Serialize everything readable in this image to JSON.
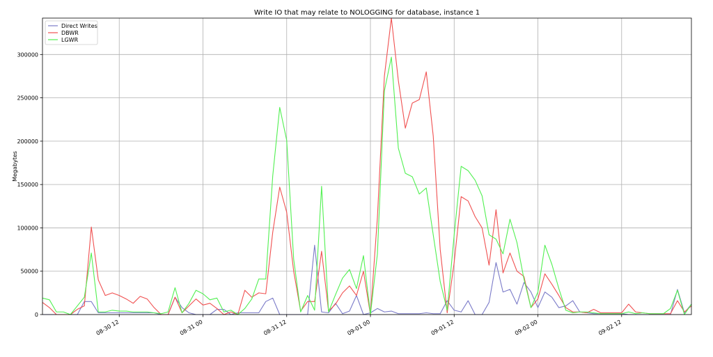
{
  "chart_data": {
    "type": "line",
    "title": "Write IO that may relate to NOLOGGING for               database, instance 1",
    "xlabel": "",
    "ylabel": "Megabytes",
    "ylim": [
      0,
      342000
    ],
    "yticks": [
      0,
      50000,
      100000,
      150000,
      200000,
      250000,
      300000
    ],
    "xticks": [
      {
        "t": 11,
        "label": "08-30 12"
      },
      {
        "t": 23,
        "label": "08-31 00"
      },
      {
        "t": 35,
        "label": "08-31 12"
      },
      {
        "t": 47,
        "label": "09-01 00"
      },
      {
        "t": 59,
        "label": "09-01 12"
      },
      {
        "t": 71,
        "label": "09-02 00"
      },
      {
        "t": 83,
        "label": "09-02 12"
      }
    ],
    "x_step_hours": 1,
    "x_start_label": "08-30 01",
    "grid": true,
    "legend": "top-left",
    "series": [
      {
        "name": "Direct Writes",
        "color": "#7a7ac8",
        "values": [
          0,
          0,
          0,
          0,
          0,
          0,
          15000,
          15000,
          2000,
          2000,
          2000,
          2000,
          2000,
          2000,
          2000,
          2000,
          2000,
          0,
          0,
          20000,
          8000,
          2000,
          0,
          0,
          0,
          6000,
          6000,
          0,
          2000,
          2000,
          2000,
          2000,
          15000,
          19000,
          0,
          0,
          0,
          0,
          0,
          80000,
          3000,
          2000,
          13000,
          1000,
          4000,
          22000,
          0,
          2000,
          7000,
          3000,
          4000,
          1000,
          1000,
          1000,
          1000,
          2000,
          1000,
          1000,
          16000,
          5000,
          3000,
          16000,
          0,
          0,
          14000,
          60000,
          26000,
          29000,
          12000,
          37000,
          26000,
          8000,
          26000,
          20000,
          8000,
          10000,
          16000,
          3000,
          2000,
          1000,
          1000,
          1000,
          1000,
          1000,
          0,
          0,
          0,
          0,
          0,
          0,
          0,
          29000,
          2000,
          12000
        ]
      },
      {
        "name": "DBWR",
        "color": "#f05050",
        "values": [
          14000,
          8000,
          0,
          0,
          0,
          6000,
          10000,
          101000,
          40000,
          22000,
          25000,
          22000,
          18000,
          13000,
          21000,
          18000,
          8000,
          0,
          0,
          20000,
          2000,
          10000,
          18000,
          11000,
          13000,
          7000,
          0,
          3000,
          0,
          28000,
          20000,
          25000,
          24000,
          95000,
          147000,
          118000,
          50000,
          4000,
          15000,
          15000,
          73000,
          4000,
          12000,
          25000,
          33000,
          22000,
          50000,
          0,
          112000,
          275000,
          342000,
          270000,
          215000,
          244000,
          248000,
          280000,
          206000,
          75000,
          2000,
          60000,
          136000,
          131000,
          113000,
          100000,
          57000,
          121000,
          48000,
          71000,
          50000,
          44000,
          8000,
          18000,
          47000,
          35000,
          22000,
          8000,
          3000,
          3000,
          2000,
          6000,
          2000,
          2000,
          2000,
          2000,
          12000,
          3000,
          2000,
          1000,
          1000,
          1000,
          1000,
          16000,
          3000,
          10000
        ]
      },
      {
        "name": "LGWR",
        "color": "#50f050",
        "values": [
          19000,
          17000,
          3000,
          3000,
          0,
          10000,
          20000,
          71000,
          3000,
          3000,
          5000,
          4000,
          4000,
          3000,
          3000,
          3000,
          2000,
          1000,
          3000,
          31000,
          2000,
          13000,
          28000,
          24000,
          17000,
          19000,
          3000,
          5000,
          0,
          7000,
          18000,
          41000,
          41000,
          160000,
          239000,
          201000,
          64000,
          3000,
          22000,
          5000,
          148000,
          3000,
          23000,
          42000,
          52000,
          30000,
          68000,
          0,
          70000,
          258000,
          297000,
          192000,
          163000,
          159000,
          139000,
          146000,
          92000,
          38000,
          5000,
          92000,
          171000,
          166000,
          155000,
          137000,
          92000,
          87000,
          70000,
          110000,
          83000,
          41000,
          8000,
          26000,
          80000,
          58000,
          30000,
          5000,
          2000,
          3000,
          3000,
          2000,
          1000,
          1000,
          1000,
          1000,
          3000,
          1000,
          2000,
          1000,
          1000,
          1000,
          7000,
          28000,
          0,
          12000
        ]
      }
    ]
  }
}
